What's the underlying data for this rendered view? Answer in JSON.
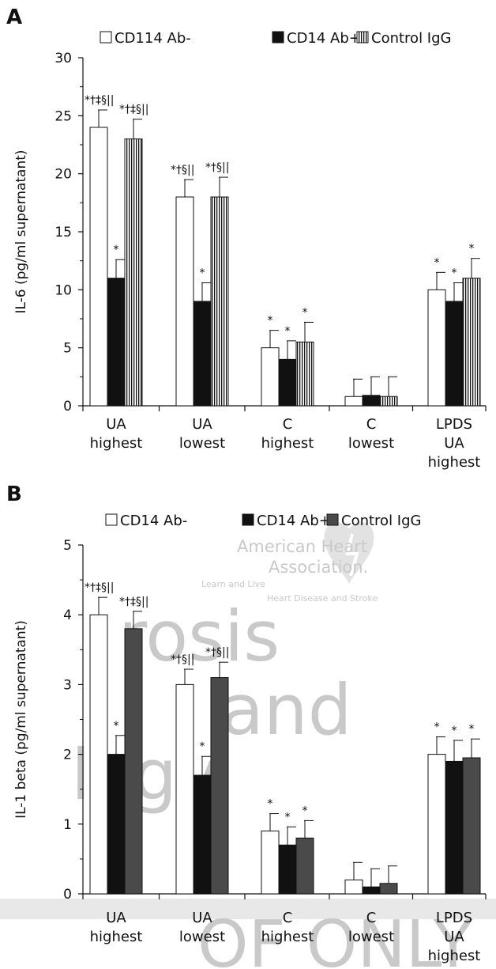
{
  "chart_data": [
    {
      "type": "bar",
      "panel": "A",
      "ylabel": "IL-6 (pg/ml supernatant)",
      "ylim": [
        0,
        30
      ],
      "yticks": [
        0,
        5,
        10,
        15,
        20,
        25,
        30
      ],
      "categories": [
        [
          "UA",
          "highest"
        ],
        [
          "UA",
          "lowest"
        ],
        [
          "C",
          "highest"
        ],
        [
          "C",
          "lowest"
        ],
        [
          "LPDS",
          "UA",
          "highest"
        ]
      ],
      "legend_position": "top",
      "series": [
        {
          "name": "CD114 Ab-",
          "fill": "#ffffff",
          "pattern": "none",
          "values": [
            24,
            18,
            5,
            0.8,
            10
          ],
          "errors": [
            1.5,
            1.5,
            1.5,
            1.5,
            1.5
          ],
          "annotations": [
            "*†‡§||",
            "*†§||",
            "*",
            "",
            "*"
          ]
        },
        {
          "name": "CD14 Ab+",
          "fill": "#111111",
          "pattern": "none",
          "values": [
            11,
            9,
            4,
            0.9,
            9
          ],
          "errors": [
            1.6,
            1.6,
            1.6,
            1.6,
            1.6
          ],
          "annotations": [
            "*",
            "*",
            "*",
            "",
            "*"
          ]
        },
        {
          "name": "Control IgG",
          "fill": "#ffffff",
          "pattern": "vertical-stripes",
          "values": [
            23,
            18,
            5.5,
            0.8,
            11
          ],
          "errors": [
            1.7,
            1.7,
            1.7,
            1.7,
            1.7
          ],
          "annotations": [
            "*†‡§||",
            "*†§||",
            "*",
            "",
            "*"
          ]
        }
      ]
    },
    {
      "type": "bar",
      "panel": "B",
      "ylabel": "IL-1 beta (pg/ml supernatant)",
      "ylim": [
        0,
        5
      ],
      "yticks": [
        0,
        1,
        2,
        3,
        4,
        5
      ],
      "categories": [
        [
          "UA",
          "highest"
        ],
        [
          "UA",
          "lowest"
        ],
        [
          "C",
          "highest"
        ],
        [
          "C",
          "lowest"
        ],
        [
          "LPDS",
          "UA",
          "highest"
        ]
      ],
      "legend_position": "top",
      "series": [
        {
          "name": "CD14 Ab-",
          "fill": "#ffffff",
          "pattern": "none",
          "values": [
            4.0,
            3.0,
            0.9,
            0.2,
            2.0
          ],
          "errors": [
            0.25,
            0.22,
            0.25,
            0.25,
            0.25
          ],
          "annotations": [
            "*†‡§||",
            "*†§||",
            "*",
            "",
            "*"
          ]
        },
        {
          "name": "CD14 Ab+",
          "fill": "#111111",
          "pattern": "none",
          "values": [
            2.0,
            1.7,
            0.7,
            0.1,
            1.9
          ],
          "errors": [
            0.27,
            0.27,
            0.26,
            0.26,
            0.3
          ],
          "annotations": [
            "*",
            "*",
            "*",
            "",
            "*"
          ]
        },
        {
          "name": "Control IgG",
          "fill": "#4a4a4a",
          "pattern": "none",
          "values": [
            3.8,
            3.1,
            0.8,
            0.15,
            1.95
          ],
          "errors": [
            0.25,
            0.22,
            0.25,
            0.25,
            0.27
          ],
          "annotations": [
            "*†‡§||",
            "*†§||",
            "*",
            "",
            "*"
          ]
        }
      ]
    }
  ],
  "watermark": {
    "logo_lines": [
      "American Heart",
      "Association."
    ],
    "tagline": "Learn and Live",
    "subline": "Heart Disease and Stroke",
    "journal_words": [
      "rosis",
      "and",
      "logy"
    ],
    "proof_text": "OF ONLY"
  },
  "colors": {
    "axis": "#111111",
    "watermark": "#c9c9c9"
  }
}
